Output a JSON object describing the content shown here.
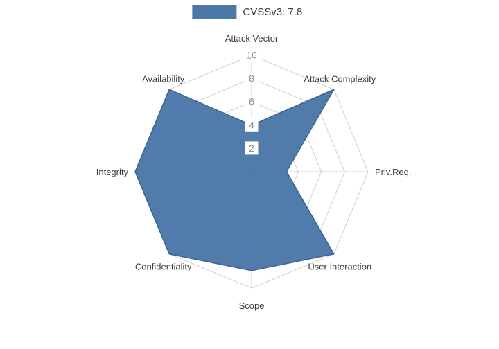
{
  "chart_data": {
    "type": "radar",
    "title": "",
    "legend": {
      "label": "CVSSv3: 7.8",
      "position": "top-center"
    },
    "categories": [
      "Attack Vector",
      "Attack Complexity",
      "Priv.Req.",
      "User Interaction",
      "Scope",
      "Confidentiality",
      "Integrity",
      "Availability"
    ],
    "series": [
      {
        "name": "CVSSv3: 7.8",
        "values": [
          4,
          10,
          3,
          10,
          8.5,
          10,
          10,
          10
        ]
      }
    ],
    "ticks": [
      2,
      4,
      6,
      8,
      10
    ],
    "rlim": [
      0,
      10
    ],
    "grid": true,
    "grid_shape": "polygon",
    "colors": {
      "fill": "#4c78a8",
      "stroke": "#3b6491",
      "grid": "#cfcfcf",
      "tick_text": "#8c8c8c",
      "tick_bg": "#ffffff",
      "label_text": "#3d3d3d",
      "background": "#ffffff"
    }
  }
}
